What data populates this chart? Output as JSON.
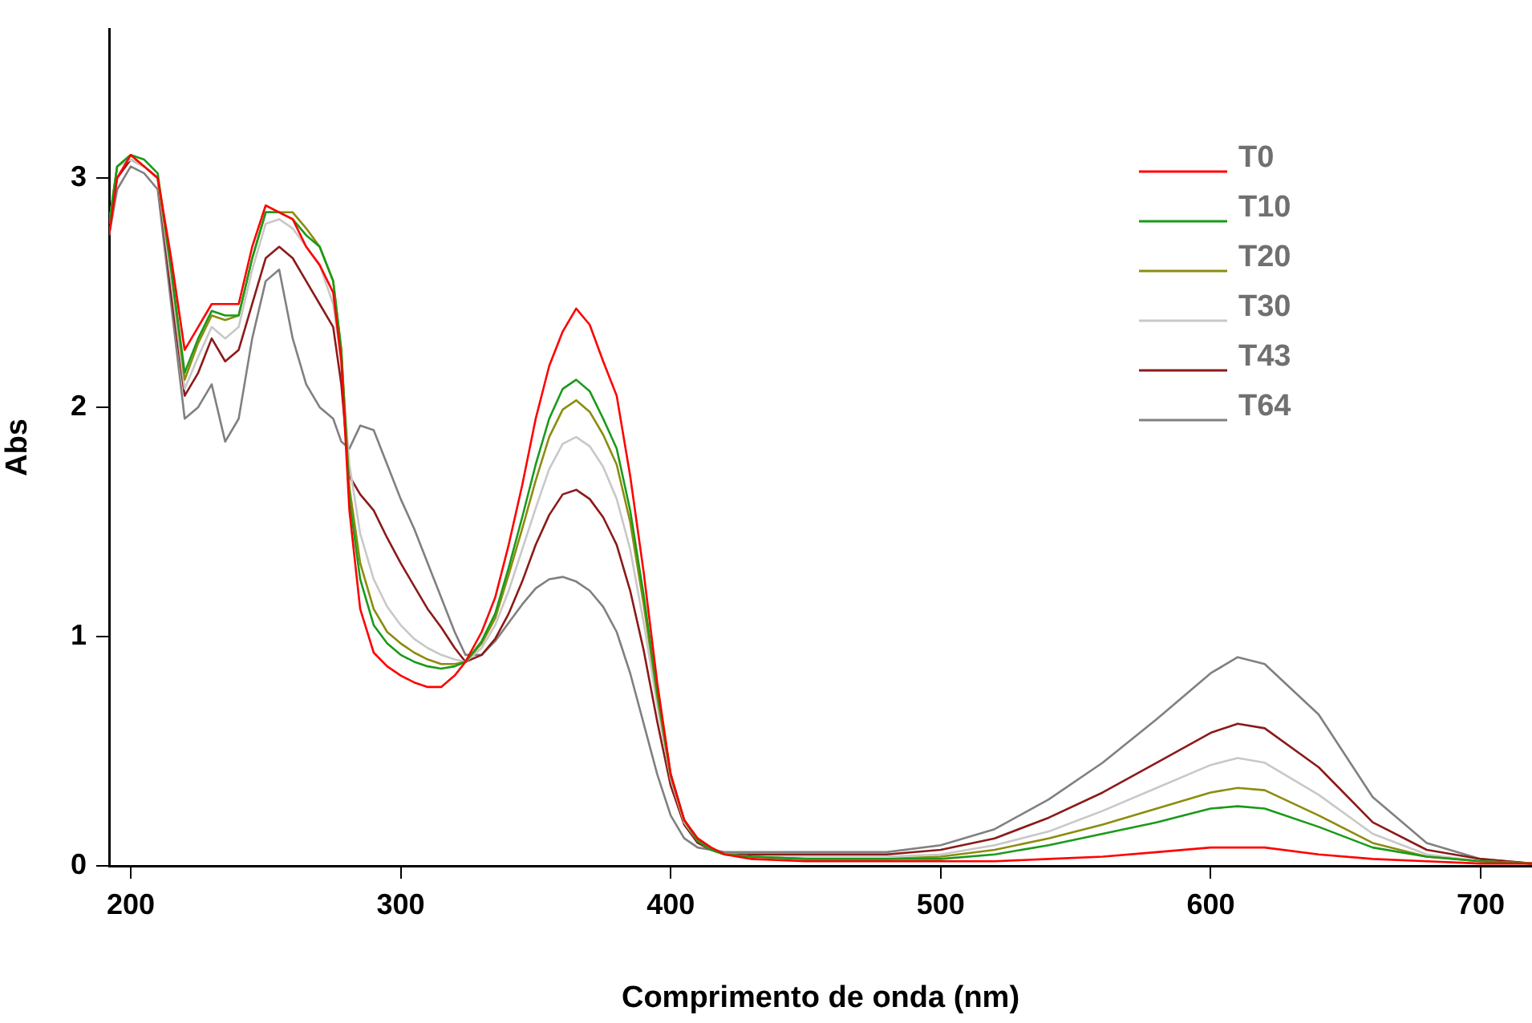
{
  "chart_data": {
    "type": "line",
    "xlabel": "Comprimento de onda (nm)",
    "ylabel": "Abs",
    "x": [
      192,
      195,
      200,
      205,
      210,
      215,
      220,
      225,
      230,
      235,
      240,
      245,
      250,
      255,
      260,
      265,
      270,
      275,
      278,
      281,
      285,
      290,
      295,
      300,
      305,
      310,
      315,
      320,
      324,
      330,
      335,
      340,
      345,
      350,
      355,
      360,
      365,
      370,
      375,
      380,
      385,
      390,
      395,
      400,
      405,
      410,
      415,
      420,
      430,
      450,
      480,
      500,
      520,
      540,
      560,
      580,
      600,
      610,
      620,
      640,
      660,
      680,
      700,
      719
    ],
    "xlim": [
      192,
      719
    ],
    "xticks": [
      200,
      300,
      400,
      500,
      600,
      700
    ],
    "ylim": [
      0,
      3.65
    ],
    "yticks": [
      0,
      1,
      2,
      3
    ],
    "grid": false,
    "legend": "top right",
    "marker": "none",
    "line_style": "solid",
    "series": [
      {
        "name": "T0",
        "color": "#ff0000",
        "values": [
          2.75,
          3.0,
          3.1,
          3.05,
          3.0,
          2.65,
          2.25,
          2.35,
          2.45,
          2.45,
          2.45,
          2.7,
          2.88,
          2.85,
          2.82,
          2.7,
          2.62,
          2.5,
          2.2,
          1.55,
          1.12,
          0.93,
          0.87,
          0.83,
          0.8,
          0.78,
          0.78,
          0.83,
          0.89,
          1.02,
          1.17,
          1.4,
          1.66,
          1.95,
          2.18,
          2.33,
          2.43,
          2.36,
          2.2,
          2.05,
          1.7,
          1.28,
          0.8,
          0.4,
          0.2,
          0.12,
          0.08,
          0.05,
          0.03,
          0.02,
          0.02,
          0.02,
          0.02,
          0.03,
          0.04,
          0.06,
          0.08,
          0.08,
          0.08,
          0.05,
          0.03,
          0.02,
          0.01,
          0.01
        ]
      },
      {
        "name": "T10",
        "color": "#1a9a1a",
        "values": [
          2.8,
          3.05,
          3.1,
          3.08,
          3.02,
          2.6,
          2.15,
          2.3,
          2.42,
          2.4,
          2.4,
          2.65,
          2.85,
          2.85,
          2.82,
          2.75,
          2.7,
          2.55,
          2.25,
          1.6,
          1.25,
          1.05,
          0.97,
          0.92,
          0.89,
          0.87,
          0.86,
          0.87,
          0.89,
          0.98,
          1.1,
          1.3,
          1.52,
          1.75,
          1.95,
          2.08,
          2.12,
          2.07,
          1.95,
          1.82,
          1.55,
          1.18,
          0.76,
          0.4,
          0.2,
          0.11,
          0.07,
          0.05,
          0.04,
          0.03,
          0.03,
          0.03,
          0.05,
          0.09,
          0.14,
          0.19,
          0.25,
          0.26,
          0.25,
          0.17,
          0.08,
          0.04,
          0.02,
          0.01
        ]
      },
      {
        "name": "T20",
        "color": "#8c8c10",
        "values": [
          2.8,
          3.05,
          3.1,
          3.05,
          3.0,
          2.6,
          2.12,
          2.28,
          2.4,
          2.38,
          2.4,
          2.65,
          2.85,
          2.85,
          2.85,
          2.78,
          2.7,
          2.55,
          2.25,
          1.65,
          1.32,
          1.12,
          1.02,
          0.97,
          0.93,
          0.9,
          0.88,
          0.88,
          0.89,
          0.97,
          1.08,
          1.27,
          1.47,
          1.68,
          1.87,
          1.99,
          2.03,
          1.98,
          1.88,
          1.75,
          1.5,
          1.14,
          0.74,
          0.39,
          0.2,
          0.11,
          0.07,
          0.05,
          0.04,
          0.03,
          0.03,
          0.04,
          0.07,
          0.12,
          0.18,
          0.25,
          0.32,
          0.34,
          0.33,
          0.22,
          0.1,
          0.04,
          0.02,
          0.01
        ]
      },
      {
        "name": "T30",
        "color": "#c8c8c8",
        "values": [
          2.8,
          3.05,
          3.08,
          3.05,
          3.0,
          2.55,
          2.08,
          2.22,
          2.35,
          2.3,
          2.35,
          2.6,
          2.8,
          2.82,
          2.78,
          2.7,
          2.62,
          2.45,
          2.2,
          1.75,
          1.45,
          1.25,
          1.13,
          1.05,
          0.99,
          0.95,
          0.92,
          0.9,
          0.89,
          0.95,
          1.05,
          1.2,
          1.38,
          1.56,
          1.73,
          1.84,
          1.87,
          1.83,
          1.74,
          1.6,
          1.38,
          1.06,
          0.7,
          0.38,
          0.19,
          0.11,
          0.07,
          0.05,
          0.04,
          0.04,
          0.04,
          0.05,
          0.09,
          0.15,
          0.24,
          0.34,
          0.44,
          0.47,
          0.45,
          0.31,
          0.14,
          0.05,
          0.02,
          0.01
        ]
      },
      {
        "name": "T43",
        "color": "#8b1a1a",
        "values": [
          2.8,
          3.0,
          3.08,
          3.05,
          3.0,
          2.5,
          2.05,
          2.15,
          2.3,
          2.2,
          2.25,
          2.45,
          2.65,
          2.7,
          2.65,
          2.55,
          2.45,
          2.35,
          2.1,
          1.7,
          1.62,
          1.55,
          1.43,
          1.32,
          1.22,
          1.12,
          1.04,
          0.95,
          0.89,
          0.92,
          0.99,
          1.1,
          1.24,
          1.4,
          1.53,
          1.62,
          1.64,
          1.6,
          1.52,
          1.4,
          1.2,
          0.94,
          0.63,
          0.35,
          0.18,
          0.1,
          0.07,
          0.05,
          0.05,
          0.05,
          0.05,
          0.07,
          0.12,
          0.21,
          0.32,
          0.45,
          0.58,
          0.62,
          0.6,
          0.43,
          0.19,
          0.07,
          0.03,
          0.01
        ]
      },
      {
        "name": "T64",
        "color": "#808080",
        "values": [
          2.75,
          2.95,
          3.05,
          3.02,
          2.95,
          2.45,
          1.95,
          2.0,
          2.1,
          1.85,
          1.95,
          2.3,
          2.55,
          2.6,
          2.3,
          2.1,
          2.0,
          1.95,
          1.85,
          1.82,
          1.92,
          1.9,
          1.75,
          1.6,
          1.47,
          1.32,
          1.17,
          1.02,
          0.92,
          0.92,
          0.98,
          1.06,
          1.14,
          1.21,
          1.25,
          1.26,
          1.24,
          1.2,
          1.13,
          1.02,
          0.84,
          0.62,
          0.4,
          0.22,
          0.12,
          0.08,
          0.07,
          0.06,
          0.06,
          0.06,
          0.06,
          0.09,
          0.16,
          0.29,
          0.45,
          0.64,
          0.84,
          0.91,
          0.88,
          0.66,
          0.3,
          0.1,
          0.03,
          0.01
        ]
      }
    ]
  }
}
